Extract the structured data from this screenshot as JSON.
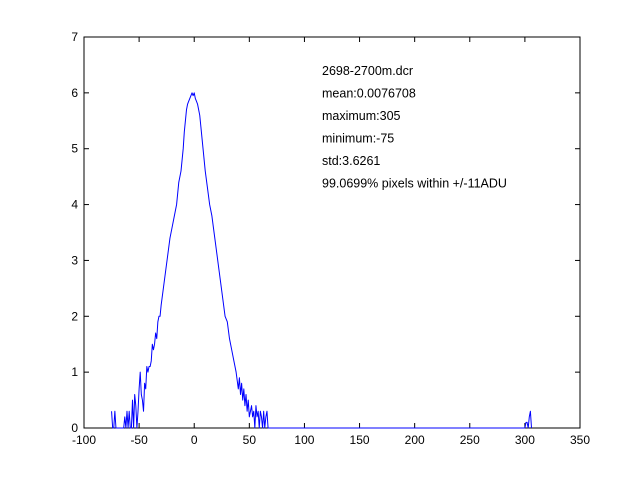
{
  "chart_data": {
    "type": "line",
    "title": "",
    "xlabel": "",
    "ylabel": "",
    "xlim": [
      -100,
      350
    ],
    "ylim": [
      0,
      7
    ],
    "xticks": [
      -100,
      -50,
      0,
      50,
      100,
      150,
      200,
      250,
      300,
      350
    ],
    "yticks": [
      0,
      1,
      2,
      3,
      4,
      5,
      6,
      7
    ],
    "grid": false,
    "legend": "none",
    "line_color": "#0000ff",
    "annotations": [
      "2698-2700m.dcr",
      "mean:0.0076708",
      "maximum:305",
      "minimum:-75",
      "std:3.6261",
      "99.0699% pixels within +/-11ADU"
    ],
    "series": [
      {
        "x": [
          -75,
          -74,
          -73,
          -72,
          -71,
          -70,
          -69,
          -68,
          -67,
          -66,
          -65,
          -64,
          -63,
          -62,
          -61,
          -60,
          -59,
          -58,
          -57,
          -56,
          -55,
          -54,
          -53,
          -52,
          -51,
          -50,
          -49,
          -48,
          -47,
          -46,
          -45,
          -44,
          -43,
          -42,
          -41,
          -40,
          -39,
          -38,
          -37,
          -36,
          -35,
          -34,
          -33,
          -32,
          -31,
          -30,
          -28,
          -26,
          -24,
          -22,
          -20,
          -18,
          -16,
          -14,
          -12,
          -10,
          -9,
          -8,
          -7,
          -6,
          -5,
          -4,
          -3,
          -2,
          -1,
          0,
          1,
          2,
          3,
          4,
          5,
          6,
          7,
          8,
          10,
          12,
          14,
          16,
          18,
          20,
          22,
          24,
          26,
          28,
          30,
          32,
          34,
          36,
          38,
          40,
          41,
          42,
          43,
          44,
          45,
          46,
          47,
          48,
          49,
          50,
          51,
          52,
          53,
          54,
          55,
          56,
          57,
          58,
          59,
          60,
          61,
          62,
          63,
          64,
          65,
          66,
          67,
          68,
          100,
          150,
          200,
          250,
          299,
          300,
          301,
          302,
          303,
          304,
          305,
          306
        ],
        "y": [
          0.3,
          0,
          0,
          0.3,
          0,
          0,
          0,
          0,
          0,
          0,
          0,
          0,
          0.2,
          0,
          0.3,
          0,
          0.3,
          0,
          0,
          0.5,
          0,
          0.6,
          0.4,
          0,
          0.3,
          0.7,
          1.0,
          0.6,
          0.5,
          0.3,
          0.8,
          0.7,
          1.1,
          1.0,
          1.1,
          1.1,
          1.2,
          1.5,
          1.4,
          1.5,
          1.7,
          1.6,
          1.9,
          2.0,
          2.0,
          2.2,
          2.5,
          2.8,
          3.1,
          3.4,
          3.6,
          3.8,
          4.0,
          4.4,
          4.6,
          5.0,
          5.3,
          5.5,
          5.7,
          5.8,
          5.85,
          5.9,
          5.95,
          6.0,
          5.95,
          6.0,
          5.9,
          5.85,
          5.8,
          5.7,
          5.6,
          5.4,
          5.2,
          5.0,
          4.6,
          4.3,
          4.0,
          3.8,
          3.5,
          3.2,
          2.9,
          2.6,
          2.3,
          2.0,
          1.9,
          1.6,
          1.4,
          1.2,
          1.0,
          0.7,
          0.9,
          0.6,
          0.8,
          0.5,
          0.7,
          0.4,
          0.6,
          0.3,
          0.5,
          0.2,
          0.3,
          0.4,
          0.2,
          0.3,
          0,
          0.4,
          0.2,
          0.3,
          0,
          0.3,
          0.2,
          0,
          0.3,
          0,
          0.2,
          0.3,
          0,
          0,
          0,
          0,
          0,
          0,
          0,
          0,
          0.1,
          0.1,
          0,
          0.2,
          0.3,
          0
        ]
      }
    ]
  }
}
